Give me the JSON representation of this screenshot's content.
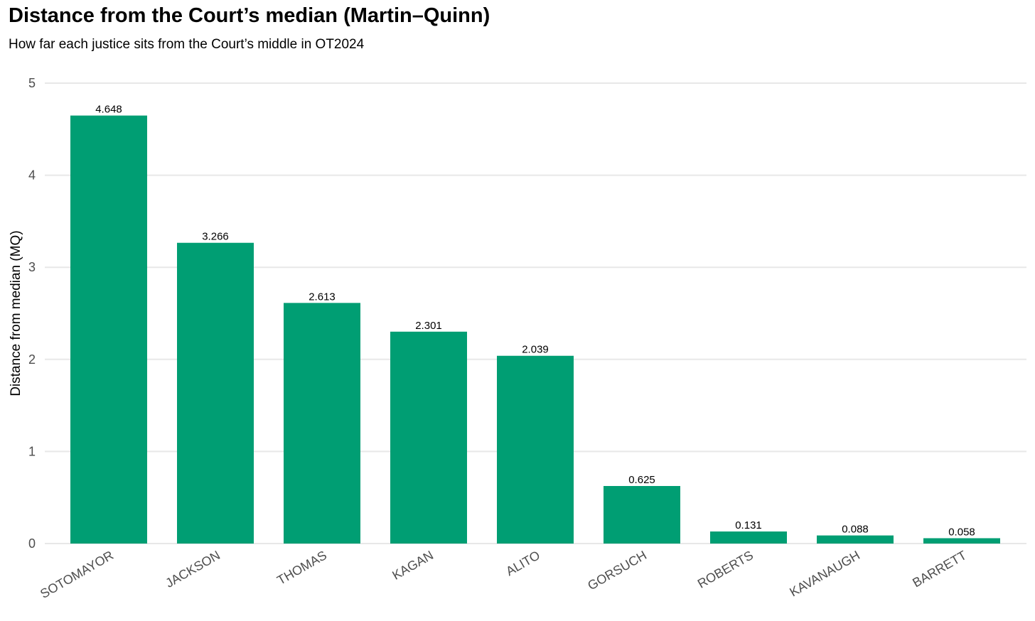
{
  "chart_data": {
    "type": "bar",
    "title": "Distance from the Court’s median (Martin–Quinn)",
    "subtitle": "How far each justice sits from the Court’s middle in OT2024",
    "xlabel": "",
    "ylabel": "Distance from median (MQ)",
    "categories": [
      "SOTOMAYOR",
      "JACKSON",
      "THOMAS",
      "KAGAN",
      "ALITO",
      "GORSUCH",
      "ROBERTS",
      "KAVANAUGH",
      "BARRETT"
    ],
    "values": [
      4.648,
      3.266,
      2.613,
      2.301,
      2.039,
      0.625,
      0.131,
      0.088,
      0.058
    ],
    "value_labels": [
      "4.648",
      "3.266",
      "2.613",
      "2.301",
      "2.039",
      "0.625",
      "0.131",
      "0.088",
      "0.058"
    ],
    "ylim": [
      0,
      5
    ],
    "yticks": [
      "0",
      "1",
      "2",
      "3",
      "4",
      "5"
    ],
    "grid": "horizontal",
    "legend": "none",
    "bar_color": "#009e73",
    "grid_color": "#e8e8e8"
  }
}
